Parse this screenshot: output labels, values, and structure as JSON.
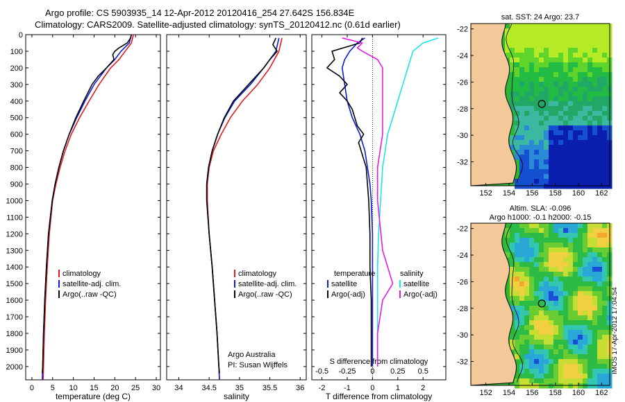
{
  "header": {
    "line1": "Argo profile: CS 5903935_14 12-Apr-2012 20120416_254 27.642S 156.834E",
    "line2": "Climatology: CARS2009. Satellite-adjusted climatology: synTS_20120412.nc (0.61d earlier)"
  },
  "stamp": "IMOS 17-Apr-2012 17:04:54",
  "colors": {
    "clim": "#e41a1c",
    "sat": "#0a1ad8",
    "argo": "#000000",
    "sat_s": "#19e6e6",
    "argo_s": "#e619e6",
    "land": "#f5c89a"
  },
  "chart_data": [
    {
      "type": "line",
      "id": "temperature",
      "xlabel": "temperature (deg C)",
      "ylabel": "",
      "xlim": [
        -1.5,
        31
      ],
      "ylim": [
        2080,
        0
      ],
      "xticks": [
        0,
        5,
        10,
        15,
        20,
        25,
        30
      ],
      "yticks": [
        0,
        100,
        200,
        300,
        400,
        500,
        600,
        700,
        800,
        900,
        1000,
        1100,
        1200,
        1300,
        1400,
        1500,
        1600,
        1700,
        1800,
        1900,
        2000
      ],
      "legend": [
        "climatology",
        "satellite-adj. clim.",
        "Argo(..raw -QC)"
      ],
      "series": [
        {
          "name": "climatology",
          "depth": [
            0,
            50,
            100,
            150,
            200,
            300,
            400,
            500,
            600,
            700,
            800,
            900,
            1000,
            1200,
            1400,
            1600,
            1800,
            2000,
            2080
          ],
          "values": [
            24.5,
            24,
            22.5,
            21,
            19,
            16.2,
            13.8,
            11.5,
            9.5,
            8,
            6.8,
            5.8,
            5.0,
            4.2,
            3.7,
            3.3,
            3.0,
            2.8,
            2.7
          ]
        },
        {
          "name": "satellite-adj. clim.",
          "depth": [
            0,
            50,
            100,
            150,
            200,
            300,
            400,
            500,
            600,
            700,
            800,
            900,
            1000,
            1200,
            1400,
            1600,
            1800,
            2000,
            2080
          ],
          "values": [
            24,
            23.5,
            21.5,
            20,
            18,
            15,
            12.8,
            10.8,
            9,
            7.6,
            6.5,
            5.6,
            4.9,
            4.0,
            3.5,
            3.1,
            2.8,
            2.6,
            2.5
          ]
        },
        {
          "name": "Argo(..raw -QC)",
          "depth": [
            0,
            20,
            50,
            80,
            100,
            120,
            150,
            200,
            250,
            300,
            400,
            500,
            600,
            700,
            800,
            900,
            1000,
            1200,
            1400,
            1600,
            1800,
            2000,
            2040
          ],
          "values": [
            24,
            23.8,
            23,
            21,
            20,
            19.5,
            19.8,
            18,
            16,
            14.5,
            12.5,
            10.6,
            9,
            7.6,
            6.5,
            5.6,
            4.9,
            4.0,
            3.5,
            3.1,
            2.8,
            2.6,
            2.5
          ]
        }
      ]
    },
    {
      "type": "line",
      "id": "salinity",
      "xlabel": "salinity",
      "ylabel": "",
      "xlim": [
        33.8,
        36.1
      ],
      "ylim": [
        2080,
        0
      ],
      "xticks": [
        34,
        34.5,
        35,
        35.5,
        36
      ],
      "legend": [
        "climatology",
        "satellite-adj. clim.",
        "Argo(..raw -QC)"
      ],
      "annotation": [
        "Argo Australia",
        "PI: Susan Wijffels"
      ],
      "series": [
        {
          "name": "climatology",
          "depth": [
            20,
            100,
            200,
            300,
            400,
            500,
            600,
            700,
            800,
            900,
            1000,
            1200,
            1400,
            1600,
            1800,
            2000,
            2080
          ],
          "values": [
            35.7,
            35.65,
            35.5,
            35.3,
            35.05,
            34.85,
            34.7,
            34.57,
            34.5,
            34.47,
            34.47,
            34.5,
            34.55,
            34.59,
            34.63,
            34.66,
            34.67
          ]
        },
        {
          "name": "satellite-adj. clim.",
          "depth": [
            20,
            100,
            200,
            300,
            400,
            500,
            600,
            700,
            800,
            900,
            1000,
            1200,
            1400,
            1600,
            1800,
            2000,
            2080
          ],
          "values": [
            35.65,
            35.6,
            35.4,
            35.18,
            34.92,
            34.76,
            34.64,
            34.55,
            34.49,
            34.46,
            34.46,
            34.5,
            34.55,
            34.59,
            34.63,
            34.66,
            34.67
          ]
        },
        {
          "name": "Argo(..raw -QC)",
          "depth": [
            20,
            60,
            100,
            150,
            200,
            300,
            400,
            500,
            600,
            700,
            800,
            900,
            1000,
            1200,
            1400,
            1600,
            1800,
            2000,
            2040
          ],
          "values": [
            35.6,
            35.55,
            35.62,
            35.5,
            35.4,
            35.15,
            34.9,
            34.75,
            34.64,
            34.55,
            34.49,
            34.46,
            34.46,
            34.5,
            34.55,
            34.59,
            34.63,
            34.66,
            34.67
          ]
        }
      ]
    },
    {
      "type": "line",
      "id": "difference",
      "xlabel": "T difference from climatology",
      "xlabel_top": "S difference from climatology",
      "xlim": [
        -2.4,
        2.9
      ],
      "ylim": [
        2080,
        0
      ],
      "xticks": [
        -2,
        -1,
        0,
        1,
        2
      ],
      "top_ticks": [
        -0.5,
        -0.25,
        0,
        0.25,
        0.5
      ],
      "legend_left_title": "temperature",
      "legend_right_title": "salinity",
      "legend_left": [
        "satellite",
        "Argo(-adj)"
      ],
      "legend_right": [
        "satellite",
        "Argo(-adj)"
      ],
      "series": [
        {
          "name": "T satellite",
          "depth": [
            20,
            50,
            100,
            150,
            200,
            300,
            400,
            500,
            600,
            700,
            800,
            900,
            1000,
            1200,
            1400,
            1600,
            1800,
            2000
          ],
          "values": [
            -0.3,
            -0.6,
            -0.9,
            -1.1,
            -1.2,
            -1.1,
            -1.0,
            -0.8,
            -0.5,
            -0.3,
            -0.2,
            -0.1,
            -0.05,
            0,
            0,
            0,
            0,
            0
          ]
        },
        {
          "name": "T Argo(-adj)",
          "depth": [
            20,
            50,
            100,
            150,
            200,
            250,
            300,
            350,
            400,
            450,
            500,
            550,
            600,
            650,
            700,
            750,
            800,
            900,
            1000,
            1200,
            1400,
            1600,
            1800,
            2000
          ],
          "values": [
            -0.4,
            -0.5,
            -1.6,
            -1.5,
            -1.8,
            -1.3,
            -1.0,
            -1.3,
            -1.0,
            -0.8,
            -0.7,
            -0.6,
            -0.35,
            -0.55,
            -0.45,
            -0.35,
            -0.25,
            -0.2,
            -0.15,
            -0.1,
            -0.1,
            -0.05,
            -0.05,
            -0.05
          ]
        },
        {
          "name": "S satellite",
          "depth": [
            20,
            50,
            100,
            200,
            300,
            400,
            500,
            600,
            800,
            1000,
            1200,
            1400,
            1600,
            1800,
            2000
          ],
          "values": [
            0.65,
            0.5,
            0.4,
            0.35,
            0.3,
            0.25,
            0.2,
            0.15,
            0.1,
            0.08,
            0.06,
            0.05,
            0.05,
            0.05,
            0.05
          ]
        },
        {
          "name": "S Argo(-adj)",
          "depth": [
            20,
            50,
            80,
            100,
            150,
            200,
            300,
            400,
            600,
            800,
            1000,
            1300,
            1400,
            1500,
            1600,
            1800,
            2000
          ],
          "values": [
            -0.3,
            -0.1,
            -0.15,
            -0.1,
            0.05,
            0.1,
            0.1,
            0.1,
            0.1,
            0.05,
            0.05,
            0.1,
            0.15,
            0.2,
            0.1,
            0.05,
            0.05
          ]
        }
      ]
    },
    {
      "type": "heatmap",
      "id": "sst_map",
      "title": "sat. SST: 24 Argo: 23.7",
      "xticks": [
        152,
        154,
        156,
        158,
        160,
        162
      ],
      "yticks": [
        -22,
        -24,
        -26,
        -28,
        -30,
        -32
      ],
      "xlim": [
        150.7,
        162.7
      ],
      "ylim": [
        -33.8,
        -21.6
      ],
      "argo_position": [
        156.834,
        -27.642
      ]
    },
    {
      "type": "heatmap",
      "id": "sla_map",
      "title": "Altim. SLA: -0.096",
      "subtitle": "Argo h1000: -0.1 h2000: -0.15",
      "xticks": [
        152,
        154,
        156,
        158,
        160,
        162
      ],
      "yticks": [
        -22,
        -24,
        -26,
        -28,
        -30,
        -32
      ],
      "xlim": [
        150.7,
        162.7
      ],
      "ylim": [
        -33.8,
        -21.6
      ],
      "argo_position": [
        156.834,
        -27.642
      ]
    }
  ]
}
